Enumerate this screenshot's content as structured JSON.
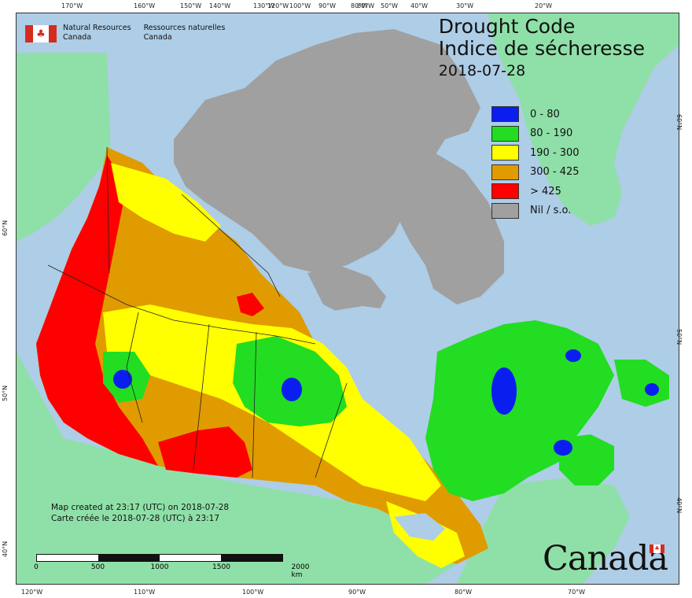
{
  "map": {
    "title_en": "Drought Code",
    "title_fr": "Indice de sécheresse",
    "date": "2018-07-28",
    "org_en": [
      "Natural Resources",
      "Canada"
    ],
    "org_fr": [
      "Ressources naturelles",
      "Canada"
    ],
    "legend": [
      {
        "label": "0 - 80",
        "color": "#0a1ef0"
      },
      {
        "label": "80 - 190",
        "color": "#22dd22"
      },
      {
        "label": "190 - 300",
        "color": "#ffff00"
      },
      {
        "label": "300 - 425",
        "color": "#e09b00"
      },
      {
        "label": "> 425",
        "color": "#ff0000"
      },
      {
        "label": "Nil / s.o.",
        "color": "#a0a0a0"
      }
    ],
    "created_en": "Map created at 23:17 (UTC) on 2018-07-28",
    "created_fr": "Carte créée le 2018-07-28 (UTC) à 23:17",
    "scale": {
      "labels": [
        "0",
        "500",
        "1000",
        "1500",
        "2000 km"
      ]
    },
    "wordmark": "Canada",
    "lon_top": [
      "170°W",
      "160°W",
      "150°W",
      "140°W",
      "130°W",
      "120°W",
      "100°W",
      "90°W",
      "80°W",
      "60°W",
      "50°W",
      "40°W",
      "30°W",
      "20°W"
    ],
    "lon_bottom": [
      "120°W",
      "110°W",
      "100°W",
      "90°W",
      "80°W",
      "70°W"
    ],
    "lat_left": [
      "60°N",
      "50°N",
      "40°N"
    ],
    "lat_right": [
      "60°N",
      "50°N",
      "40°N"
    ]
  }
}
